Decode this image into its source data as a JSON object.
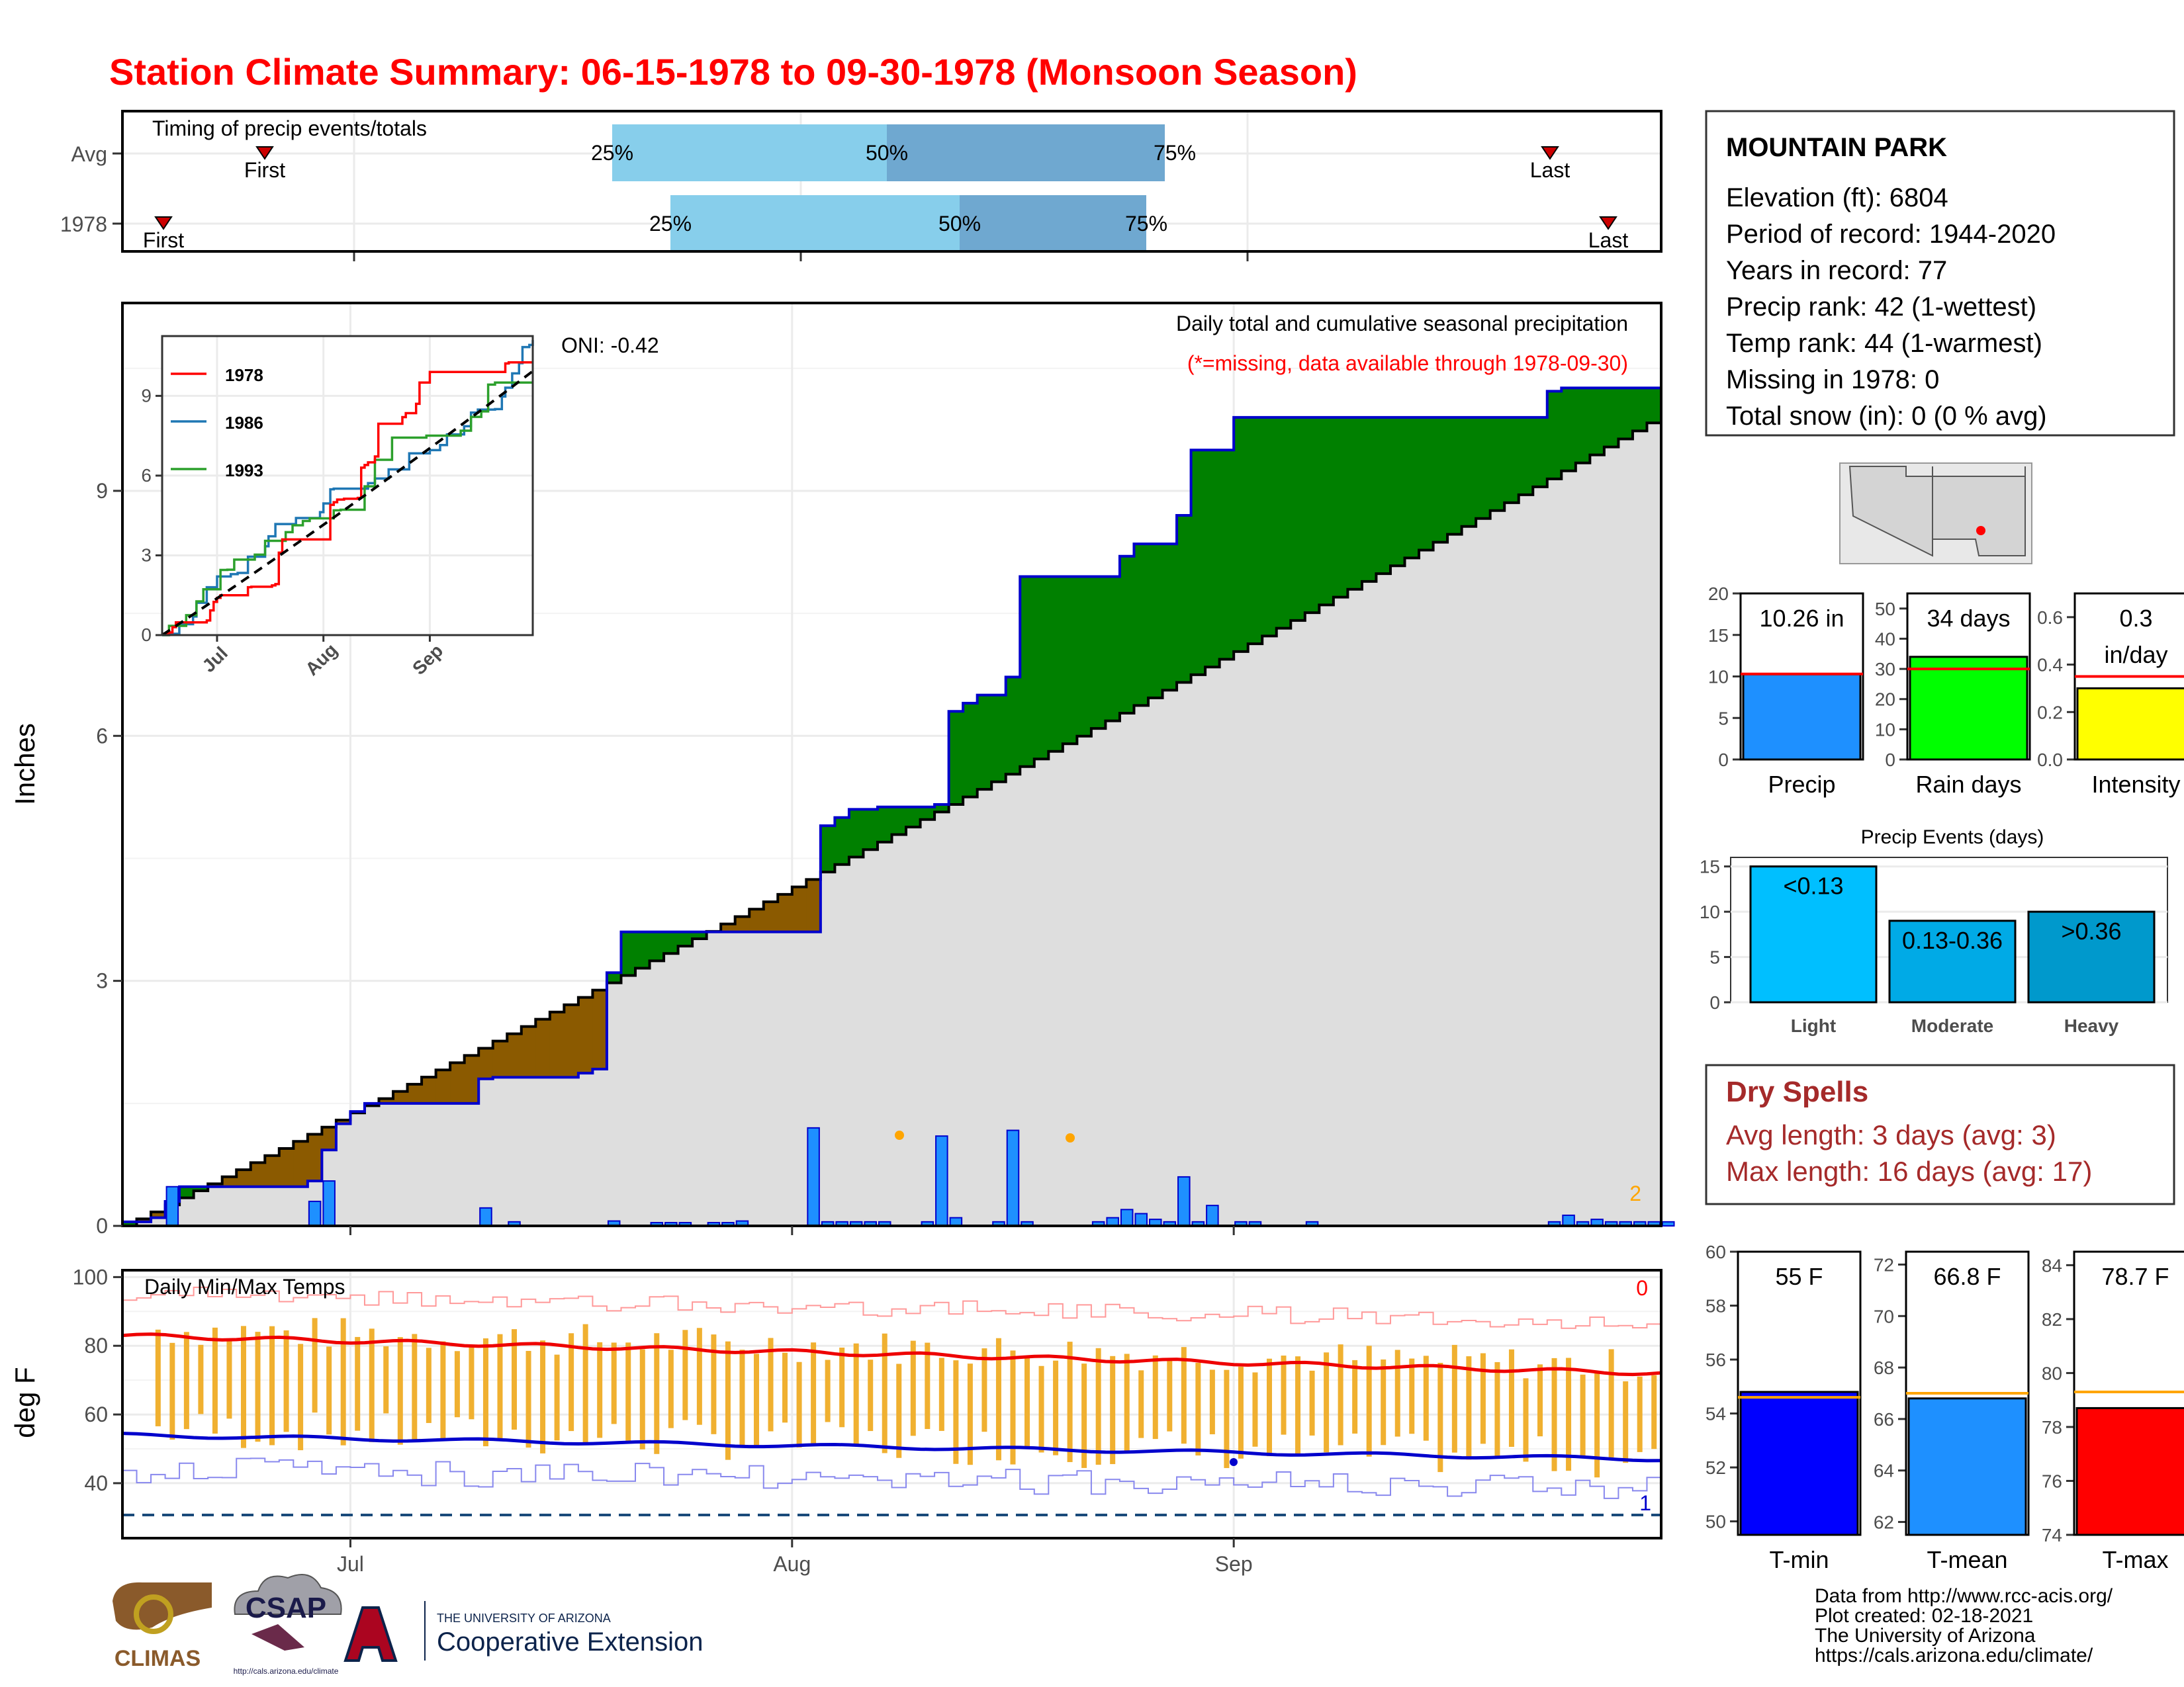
{
  "title": "Station Climate Summary: 06-15-1978 to 09-30-1978 (Monsoon Season)",
  "colors": {
    "title": "#ff0000",
    "avg": "#000000",
    "y1978": "#ff0000",
    "y1986": "#1f77b4",
    "y1993": "#2ca02c",
    "above": "#008000",
    "below": "#8b5a00",
    "bars": "#1e90ff",
    "tbar": "#f0b030"
  },
  "timing": {
    "label": "Timing of precip events/totals",
    "rows": [
      {
        "name": "Avg",
        "first": "First",
        "last": "Last",
        "q25": "25%",
        "q50": "50%",
        "q75": "75%",
        "first_day": "06-22",
        "last_day": "09-27",
        "q25_day": "07-27",
        "q50_day": "08-12",
        "q75_day": "09-01"
      },
      {
        "name": "1978",
        "first": "First",
        "last": "Last",
        "q25": "25%",
        "q50": "50%",
        "q75": "75%",
        "first_day": "06-17",
        "last_day": "09-30",
        "q25_day": "07-31",
        "q50_day": "08-16",
        "q75_day": "08-27"
      }
    ]
  },
  "main": {
    "ylabel": "Inches",
    "header": "Daily total and cumulative seasonal precipitation",
    "subheader": "(*=missing, data available through 1978-09-30)",
    "oni": "ONI: -0.42",
    "corner_count": "2",
    "yticks": [
      "0",
      "3",
      "6",
      "9"
    ],
    "xticks": [
      "Jul",
      "Aug",
      "Sep"
    ]
  },
  "inset": {
    "yticks": [
      "0",
      "3",
      "6",
      "9"
    ],
    "xticks": [
      "Jul",
      "Aug",
      "Sep"
    ],
    "legend": [
      "1978",
      "1986",
      "1993"
    ]
  },
  "temps": {
    "label": "Daily Min/Max Temps",
    "ylabel": "deg F",
    "yticks": [
      "40",
      "60",
      "80",
      "100"
    ],
    "corner_top": "0",
    "corner_bottom": "1"
  },
  "station": {
    "name": "MOUNTAIN PARK",
    "lines": [
      "Elevation (ft): 6804",
      "Period of record: 1944-2020",
      "Years in record: 77",
      "Precip rank: 42 (1-wettest)",
      "Temp rank: 44 (1-warmest)",
      "Missing in 1978: 0",
      "Total snow (in): 0 (0 % avg)"
    ]
  },
  "summary_bars": [
    {
      "label": "Precip",
      "value": 10.26,
      "avg": 10.3,
      "text": "10.26 in",
      "max": 20,
      "yticks": [
        "0",
        "5",
        "10",
        "15",
        "20"
      ],
      "color": "#1e90ff"
    },
    {
      "label": "Rain days",
      "value": 34,
      "avg": 30,
      "text": "34 days",
      "max": 55,
      "yticks": [
        "0",
        "10",
        "20",
        "30",
        "40",
        "50"
      ],
      "color": "#00ff00"
    },
    {
      "label": "Intensity",
      "value": 0.3,
      "avg": 0.35,
      "text": "0.3",
      "text2": "in/day",
      "max": 0.7,
      "yticks": [
        "0.0",
        "0.2",
        "0.4",
        "0.6"
      ],
      "color": "#ffff00"
    }
  ],
  "events": {
    "title": "Precip Events (days)",
    "yticks": [
      "0",
      "5",
      "10",
      "15"
    ],
    "bars": [
      {
        "label": "Light",
        "value": 15,
        "text": "<0.13",
        "color": "#00bfff"
      },
      {
        "label": "Moderate",
        "value": 9,
        "text": "0.13-0.36",
        "color": "#00aae6"
      },
      {
        "label": "Heavy",
        "value": 10,
        "text": ">0.36",
        "color": "#0099cc"
      }
    ]
  },
  "dry": {
    "title": "Dry Spells",
    "avg": "Avg length: 3 days (avg: 3)",
    "max": "Max length: 16 days (avg: 17)"
  },
  "temp_bars": [
    {
      "label": "T-min",
      "value": 54.8,
      "avg": 54.6,
      "text": "55 F",
      "min": 49.5,
      "max": 60,
      "yticks": [
        "50",
        "52",
        "54",
        "56",
        "58",
        "60"
      ],
      "color": "#0000ff"
    },
    {
      "label": "T-mean",
      "value": 66.8,
      "avg": 67.0,
      "text": "66.8 F",
      "min": 61.5,
      "max": 72.5,
      "yticks": [
        "62",
        "64",
        "66",
        "68",
        "70",
        "72"
      ],
      "color": "#1e90ff"
    },
    {
      "label": "T-max",
      "value": 78.7,
      "avg": 79.3,
      "text": "78.7 F",
      "min": 74,
      "max": 84.5,
      "yticks": [
        "74",
        "76",
        "78",
        "80",
        "82",
        "84"
      ],
      "color": "#ff0000"
    }
  ],
  "footer": {
    "lines": [
      "Data from http://www.rcc-acis.org/",
      "Plot created: 02-18-2021",
      "The University of Arizona",
      "https://cals.arizona.edu/climate/"
    ],
    "logos": [
      "CLIMAS",
      "CSAP",
      "THE UNIVERSITY OF ARIZONA",
      "Cooperative Extension",
      "http://cals.arizona.edu/climate"
    ]
  },
  "chart_data": {
    "type": "area",
    "title": "Station Climate Summary: 06-15-1978 to 09-30-1978 (Monsoon Season)",
    "ylabel": "Inches",
    "ylim": [
      0,
      11.3
    ],
    "x_range": [
      "06-15",
      "09-30"
    ],
    "series": [
      {
        "name": "1978",
        "values": [
          [
            0,
            0.05
          ],
          [
            2,
            0.05
          ],
          [
            3,
            0.1
          ],
          [
            4,
            0.3
          ],
          [
            5,
            0.48
          ],
          [
            8,
            0.48
          ],
          [
            16,
            0.48
          ],
          [
            18,
            0.48
          ],
          [
            19,
            0.55
          ],
          [
            20,
            0.55
          ],
          [
            21,
            0.75
          ],
          [
            22,
            0.93
          ],
          [
            23,
            1.25
          ],
          [
            24,
            1.4
          ],
          [
            26,
            1.5
          ],
          [
            33,
            1.5
          ],
          [
            34,
            1.5
          ],
          [
            37,
            1.5
          ],
          [
            38,
            1.72
          ],
          [
            39,
            1.8
          ],
          [
            40,
            1.82
          ],
          [
            48,
            1.82
          ],
          [
            49,
            1.87
          ],
          [
            51,
            1.92
          ],
          [
            52,
            2.3
          ],
          [
            53,
            3.1
          ],
          [
            54,
            3.35
          ],
          [
            55,
            3.6
          ],
          [
            56,
            3.6
          ],
          [
            59,
            3.6
          ],
          [
            60,
            3.6
          ],
          [
            74,
            3.6
          ],
          [
            75,
            3.6
          ],
          [
            76,
            4.8
          ],
          [
            77,
            4.9
          ],
          [
            78,
            5.0
          ],
          [
            79,
            5.1
          ],
          [
            82,
            5.13
          ],
          [
            88,
            5.13
          ],
          [
            89,
            5.16
          ],
          [
            90,
            6.2
          ],
          [
            91,
            6.3
          ],
          [
            92,
            6.4
          ],
          [
            93,
            6.5
          ],
          [
            96,
            6.5
          ],
          [
            97,
            6.72
          ],
          [
            98,
            7.9
          ],
          [
            99,
            7.95
          ],
          [
            107,
            7.95
          ],
          [
            109,
            8.0
          ],
          [
            110,
            8.2
          ],
          [
            111,
            8.35
          ],
          [
            112,
            8.35
          ],
          [
            116,
            8.7
          ],
          [
            117,
            9.5
          ],
          [
            118,
            9.5
          ],
          [
            119,
            9.5
          ],
          [
            121,
            9.5
          ],
          [
            122,
            9.9
          ],
          [
            123,
            9.9
          ],
          [
            124,
            9.9
          ],
          [
            125,
            9.9
          ],
          [
            130,
            9.9
          ],
          [
            131,
            9.9
          ],
          [
            133,
            9.9
          ],
          [
            134,
            9.9
          ],
          [
            138,
            9.9
          ],
          [
            139,
            9.9
          ],
          [
            144,
            9.9
          ],
          [
            145,
            9.9
          ],
          [
            146,
            9.9
          ],
          [
            147,
            9.9
          ],
          [
            149,
            9.9
          ],
          [
            150,
            9.9
          ],
          [
            151,
            9.9
          ],
          [
            155,
            9.9
          ],
          [
            156,
            9.92
          ],
          [
            157,
            10.22
          ],
          [
            158,
            10.26
          ],
          [
            159,
            10.26
          ],
          [
            160,
            10.26
          ],
          [
            161,
            10.26
          ],
          [
            166,
            10.26
          ],
          [
            170,
            10.26
          ]
        ]
      },
      {
        "name": "Avg",
        "values": [
          [
            0,
            0
          ],
          [
            170,
            10
          ]
        ]
      }
    ],
    "daily_precip_note": "Daily bars",
    "daily_precip": [
      [
        4,
        0.48
      ],
      [
        20,
        0.3
      ],
      [
        21,
        0.2
      ],
      [
        22,
        0.55
      ],
      [
        40,
        0.22
      ],
      [
        42,
        0.05
      ],
      [
        53,
        0.06
      ],
      [
        59,
        0.04
      ],
      [
        60,
        0.04
      ],
      [
        62,
        0.04
      ],
      [
        64,
        0.04
      ],
      [
        66,
        0.04
      ],
      [
        67,
        0.06
      ],
      [
        68,
        0.05
      ],
      [
        60,
        0.04
      ],
      [
        61,
        0.04
      ],
      [
        61,
        0.04
      ],
      [
        76,
        1.2
      ],
      [
        77,
        0.05
      ],
      [
        78,
        0.05
      ],
      [
        79,
        0.05
      ],
      [
        80,
        0.05
      ],
      [
        81,
        0.05
      ],
      [
        82,
        0.05
      ],
      [
        83,
        0.05
      ],
      [
        88,
        0.05
      ],
      [
        89,
        0.05
      ],
      [
        90,
        1.1
      ],
      [
        91,
        0.1
      ],
      [
        92,
        0.05
      ],
      [
        96,
        0.05
      ],
      [
        97,
        0.22
      ],
      [
        98,
        1.17
      ],
      [
        99,
        0.05
      ],
      [
        107,
        0.05
      ],
      [
        108,
        0.05
      ],
      [
        109,
        0.1
      ],
      [
        110,
        0.2
      ],
      [
        111,
        0.15
      ],
      [
        113,
        0.05
      ],
      [
        114,
        0.08
      ],
      [
        115,
        0.05
      ],
      [
        116,
        0.6
      ],
      [
        117,
        0.05
      ],
      [
        118,
        0.05
      ],
      [
        119,
        0.25
      ],
      [
        122,
        0.05
      ],
      [
        124,
        0.05
      ],
      [
        125,
        0.05
      ],
      [
        130,
        0.05
      ],
      [
        131,
        0.05
      ],
      [
        157,
        0.05
      ],
      [
        158,
        0.05
      ],
      [
        159,
        0.13
      ],
      [
        160,
        0.05
      ],
      [
        161,
        0.05
      ],
      [
        162,
        0.08
      ],
      [
        163,
        0.05
      ],
      [
        164,
        0.05
      ],
      [
        165,
        0.05
      ],
      [
        166,
        0.05
      ],
      [
        167,
        0.05
      ],
      [
        168,
        0.05
      ],
      [
        169,
        0.05
      ],
      [
        170,
        0.05
      ]
    ],
    "temps": {
      "tmin_avg_start": 54,
      "tmin_avg_end": 47,
      "tmax_avg_start": 83,
      "tmax_avg_end": 72,
      "freeze_line": 32
    }
  }
}
